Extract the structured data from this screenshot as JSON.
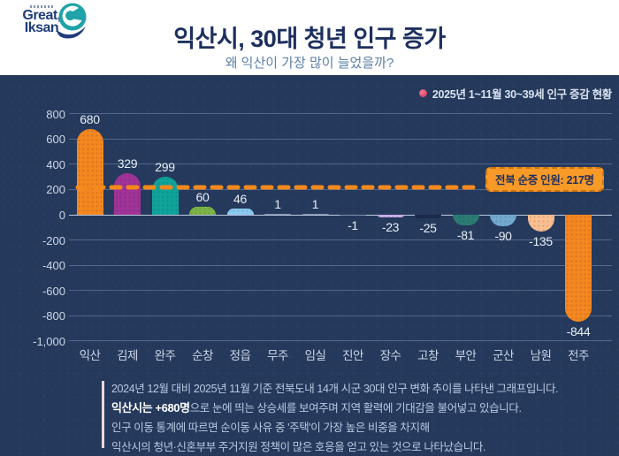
{
  "logo": {
    "line1": "Great,",
    "line2": "Iksan"
  },
  "header": {
    "title": "익산시, 30대 청년 인구 증가",
    "subtitle": "왜 익산이 가장 많이 늘었을까?"
  },
  "legend": {
    "label": "2025년 1~11월 30~39세 인구 증감 현황",
    "dot_color": "#d94567"
  },
  "chart_data": {
    "type": "bar",
    "title": "2025년 1~11월 30~39세 인구 증감 현황",
    "categories": [
      "익산",
      "김제",
      "완주",
      "순창",
      "정읍",
      "무주",
      "임실",
      "진안",
      "장수",
      "고창",
      "부안",
      "군산",
      "남원",
      "전주"
    ],
    "values": [
      680,
      329,
      299,
      60,
      46,
      1,
      1,
      -1,
      -23,
      -25,
      -81,
      -90,
      -135,
      -844
    ],
    "bar_colors": [
      "#f5871f",
      "#a03397",
      "#0fa49b",
      "#7cb544",
      "#8ac9f0",
      "#7f8fae",
      "#7f8fae",
      "#7f8fae",
      "#c9ade8",
      "#1c2a4f",
      "#2b7c72",
      "#72aace",
      "#fbbf90",
      "#f5871f"
    ],
    "ylim": [
      -1000,
      800
    ],
    "ytick_step": 200,
    "grid": true,
    "legend_position": "top-right",
    "reference_line": {
      "value": 217,
      "label": "전북 순증 인원: 217명",
      "color": "#f5891c"
    }
  },
  "footer": {
    "lines": [
      {
        "bold": "",
        "text": "2024년 12월 대비 2025년 11월 기준 전북도내 14개 시군 30대 인구 변화 추이를 나타낸 그래프입니다."
      },
      {
        "bold": "익산시는 +680명",
        "text": "으로 눈에 띄는 상승세를 보여주며 지역 활력에 기대감을 불어넣고 있습니다."
      },
      {
        "bold": "",
        "text": "인구 이동 통계에 따르면 순이동 사유 중 '주택'이 가장 높은 비중을 차지해"
      },
      {
        "bold": "",
        "text": "익산시의 청년·신혼부부 주거지원 정책이 많은 호응을 얻고 있는 것으로 나타났습니다."
      }
    ]
  },
  "colors": {
    "panel_bg": "#24395b",
    "title": "#1d2f5e",
    "subtitle": "#5d7fa8",
    "annotation_bg": "#f89a28",
    "annotation_border": "#cf7410"
  }
}
